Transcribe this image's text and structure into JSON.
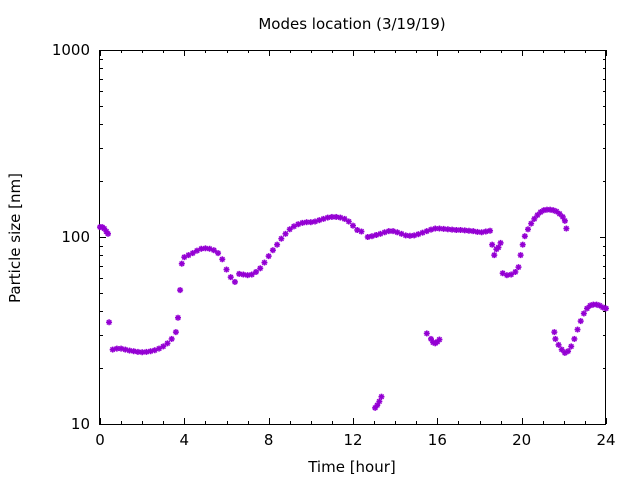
{
  "chart_data": {
    "type": "scatter",
    "title": "Modes location (3/19/19)",
    "xlabel": "Time [hour]",
    "ylabel": "Particle size [nm]",
    "xlim": [
      0,
      24
    ],
    "ylim": [
      10,
      1000
    ],
    "yscale": "log",
    "xticks": [
      "0",
      "4",
      "8",
      "12",
      "16",
      "20",
      "24"
    ],
    "yticks": [
      "10",
      "100",
      "1000"
    ],
    "grid": false,
    "legend": "none",
    "marker": "asterisk",
    "colors": {
      "series": "#9400D3",
      "axes": "#000000"
    },
    "series": [
      {
        "points": [
          [
            0.0,
            113
          ],
          [
            0.1,
            113
          ],
          [
            0.2,
            111
          ],
          [
            0.3,
            107
          ],
          [
            0.38,
            104
          ],
          [
            0.43,
            35
          ],
          [
            0.6,
            25
          ],
          [
            0.8,
            25.3
          ],
          [
            1.0,
            25.3
          ],
          [
            1.2,
            25
          ],
          [
            1.4,
            24.7
          ],
          [
            1.6,
            24.5
          ],
          [
            1.8,
            24.3
          ],
          [
            2.0,
            24.2
          ],
          [
            2.2,
            24.3
          ],
          [
            2.4,
            24.5
          ],
          [
            2.6,
            24.8
          ],
          [
            2.8,
            25.3
          ],
          [
            3.0,
            26
          ],
          [
            3.2,
            27
          ],
          [
            3.4,
            28.5
          ],
          [
            3.6,
            31
          ],
          [
            3.7,
            37
          ],
          [
            3.8,
            52
          ],
          [
            3.88,
            72
          ],
          [
            4.0,
            78
          ],
          [
            4.2,
            80
          ],
          [
            4.4,
            82
          ],
          [
            4.6,
            84.5
          ],
          [
            4.8,
            86.5
          ],
          [
            5.0,
            87
          ],
          [
            5.2,
            86.5
          ],
          [
            5.4,
            85
          ],
          [
            5.6,
            82
          ],
          [
            5.8,
            76
          ],
          [
            6.0,
            67
          ],
          [
            6.2,
            61
          ],
          [
            6.4,
            57.5
          ],
          [
            6.6,
            63.5
          ],
          [
            6.8,
            63
          ],
          [
            7.0,
            62.5
          ],
          [
            7.2,
            63
          ],
          [
            7.4,
            65
          ],
          [
            7.6,
            68
          ],
          [
            7.8,
            73
          ],
          [
            8.0,
            79
          ],
          [
            8.2,
            85
          ],
          [
            8.4,
            91
          ],
          [
            8.6,
            98
          ],
          [
            8.8,
            104
          ],
          [
            9.0,
            110
          ],
          [
            9.2,
            114
          ],
          [
            9.4,
            117
          ],
          [
            9.6,
            119
          ],
          [
            9.8,
            120
          ],
          [
            10.0,
            120
          ],
          [
            10.2,
            121
          ],
          [
            10.4,
            123
          ],
          [
            10.6,
            125
          ],
          [
            10.8,
            127
          ],
          [
            11.0,
            128
          ],
          [
            11.2,
            128
          ],
          [
            11.4,
            127
          ],
          [
            11.6,
            125
          ],
          [
            11.8,
            121
          ],
          [
            12.0,
            115
          ],
          [
            12.2,
            109
          ],
          [
            12.4,
            107
          ],
          [
            12.7,
            100
          ],
          [
            12.9,
            101
          ],
          [
            13.1,
            102.5
          ],
          [
            13.3,
            104
          ],
          [
            13.5,
            106
          ],
          [
            13.7,
            107.5
          ],
          [
            13.9,
            107.5
          ],
          [
            14.1,
            106
          ],
          [
            14.3,
            104
          ],
          [
            14.5,
            102
          ],
          [
            14.7,
            101.5
          ],
          [
            14.9,
            102
          ],
          [
            15.1,
            103.5
          ],
          [
            15.3,
            105.5
          ],
          [
            15.5,
            107.5
          ],
          [
            15.7,
            109.5
          ],
          [
            15.9,
            111
          ],
          [
            16.1,
            111
          ],
          [
            16.3,
            110.5
          ],
          [
            16.5,
            110
          ],
          [
            16.7,
            109.5
          ],
          [
            16.9,
            109
          ],
          [
            17.1,
            109
          ],
          [
            17.3,
            108.5
          ],
          [
            17.5,
            108
          ],
          [
            17.7,
            107.5
          ],
          [
            17.9,
            106.5
          ],
          [
            18.1,
            106
          ],
          [
            18.3,
            107
          ],
          [
            18.5,
            108
          ],
          [
            13.05,
            12.2
          ],
          [
            13.15,
            12.6
          ],
          [
            13.25,
            13.2
          ],
          [
            13.35,
            14
          ],
          [
            15.5,
            30.5
          ],
          [
            15.7,
            28.5
          ],
          [
            15.8,
            27.3
          ],
          [
            15.9,
            27
          ],
          [
            16.0,
            27.5
          ],
          [
            16.1,
            28.3
          ],
          [
            18.6,
            91
          ],
          [
            18.7,
            80
          ],
          [
            18.8,
            86
          ],
          [
            18.9,
            88
          ],
          [
            19.0,
            93
          ],
          [
            19.1,
            64
          ],
          [
            19.3,
            62.5
          ],
          [
            19.5,
            63
          ],
          [
            19.7,
            65
          ],
          [
            19.85,
            69
          ],
          [
            19.95,
            80
          ],
          [
            20.05,
            91
          ],
          [
            20.15,
            101
          ],
          [
            20.3,
            110
          ],
          [
            20.45,
            118
          ],
          [
            20.6,
            125
          ],
          [
            20.75,
            131
          ],
          [
            20.9,
            136
          ],
          [
            21.05,
            139
          ],
          [
            21.2,
            140
          ],
          [
            21.35,
            140
          ],
          [
            21.5,
            139
          ],
          [
            21.65,
            137
          ],
          [
            21.8,
            133
          ],
          [
            21.95,
            128
          ],
          [
            22.05,
            122
          ],
          [
            22.12,
            111
          ],
          [
            21.55,
            31
          ],
          [
            21.6,
            28.5
          ],
          [
            21.75,
            26.5
          ],
          [
            21.9,
            25
          ],
          [
            22.05,
            24
          ],
          [
            22.2,
            24.5
          ],
          [
            22.35,
            26
          ],
          [
            22.5,
            28.5
          ],
          [
            22.65,
            32
          ],
          [
            22.8,
            35.5
          ],
          [
            22.95,
            39
          ],
          [
            23.1,
            41.5
          ],
          [
            23.25,
            43
          ],
          [
            23.4,
            43.5
          ],
          [
            23.55,
            43.5
          ],
          [
            23.7,
            43
          ],
          [
            23.85,
            42
          ],
          [
            24.0,
            41.5
          ]
        ]
      }
    ]
  }
}
